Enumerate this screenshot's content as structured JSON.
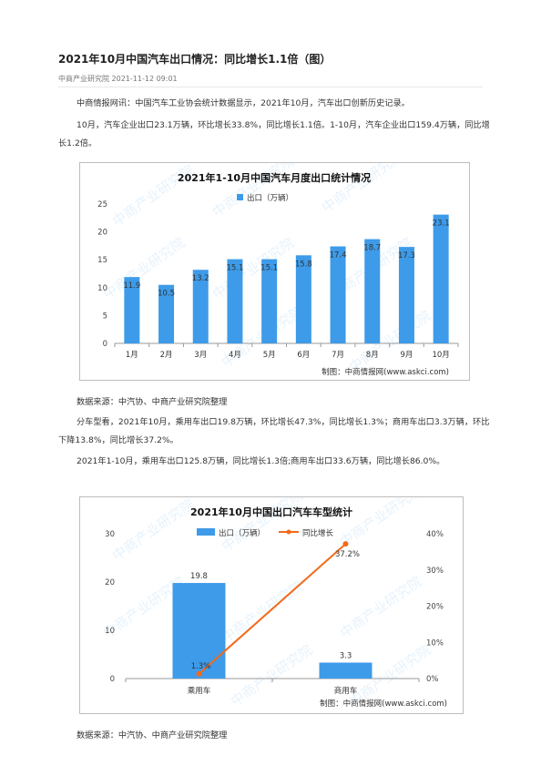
{
  "article": {
    "title": "2021年10月中国汽车出口情况：同比增长1.1倍（图）",
    "source_date": "中商产业研究院 2021-11-12 09:01",
    "para1": "中商情报网讯：中国汽车工业协会统计数据显示，2021年10月，汽车出口创新历史记录。",
    "para2": "10月，汽车企业出口23.1万辆，环比增长33.8%，同比增长1.1倍。1-10月，汽车企业出口159.4万辆，同比增长1.2倍。",
    "source1": "数据来源：中汽协、中商产业研究院整理",
    "para3": "分车型看，2021年10月，乘用车出口19.8万辆，环比增长47.3%，同比增长1.3%；商用车出口3.3万辆，环比下降13.8%，同比增长37.2%。",
    "para4": "2021年1-10月，乘用车出口125.8万辆，同比增长1.3倍;商用车出口33.6万辆，同比增长86.0%。",
    "source2": "数据来源：中汽协、中商产业研究院整理"
  },
  "watermark": "中商产业研究院",
  "colors": {
    "bar": "#3d9be9",
    "line": "#f26a1b",
    "axis": "#999999"
  },
  "chart_data": [
    {
      "type": "bar",
      "title": "2021年1-10月中国汽车月度出口统计情况",
      "legend": "出口（万辆）",
      "categories": [
        "1月",
        "2月",
        "3月",
        "4月",
        "5月",
        "6月",
        "7月",
        "8月",
        "9月",
        "10月"
      ],
      "values": [
        11.9,
        10.5,
        13.2,
        15.1,
        15.1,
        15.8,
        17.4,
        18.7,
        17.3,
        23.1
      ],
      "value_labels": [
        "11.9",
        "10.5",
        "13.2",
        "15.1",
        "15.1",
        "15.8",
        "17.4",
        "18.7",
        "17.3",
        "23.1"
      ],
      "yticks": [
        "0",
        "5",
        "10",
        "15",
        "20",
        "25"
      ],
      "ylim": [
        0,
        25
      ],
      "credit": "制图：中商情报网(www.askci.com)"
    },
    {
      "type": "bar+line",
      "title": "2021年10月中国出口汽车车型统计",
      "categories": [
        "乘用车",
        "商用车"
      ],
      "series": [
        {
          "name": "出口（万辆）",
          "type": "bar",
          "values": [
            19.8,
            3.3
          ],
          "labels": [
            "19.8",
            "3.3"
          ]
        },
        {
          "name": "同比增长",
          "type": "line",
          "values": [
            1.3,
            37.2
          ],
          "labels": [
            "1.3%",
            "37.2%"
          ]
        }
      ],
      "yticks_left": [
        "0",
        "10",
        "20",
        "30"
      ],
      "ylim_left": [
        0,
        30
      ],
      "yticks_right": [
        "0%",
        "10%",
        "20%",
        "30%",
        "40%"
      ],
      "ylim_right": [
        0,
        40
      ],
      "credit": "制图：中商情报网(www.askci.com)"
    }
  ]
}
